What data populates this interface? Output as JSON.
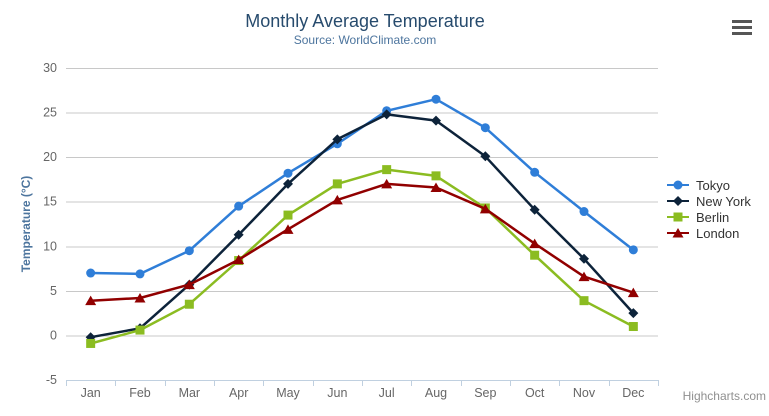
{
  "chart": {
    "credits_label": "Highcharts.com",
    "export_menu_icon": "hamburger-menu-icon"
  },
  "colors": {
    "background": "#ffffff",
    "title": "#274b6d",
    "subtitle": "#4d759e",
    "axis_title": "#4d759e",
    "axis_labels": "#666666",
    "gridline": "#c8c8c8",
    "axis_line": "#c0d0e0",
    "tick": "#c0d0e0",
    "legend_text": "#333333",
    "credits": "#909090",
    "export_icon": "#565656"
  },
  "chart_data": {
    "type": "line",
    "title": "Monthly Average Temperature",
    "subtitle": "Source: WorldClimate.com",
    "categories": [
      "Jan",
      "Feb",
      "Mar",
      "Apr",
      "May",
      "Jun",
      "Jul",
      "Aug",
      "Sep",
      "Oct",
      "Nov",
      "Dec"
    ],
    "xlabel": "",
    "ylabel": "Temperature (°C)",
    "ylim": [
      -5,
      30
    ],
    "ytick_step": 5,
    "grid": true,
    "legend_position": "right",
    "series": [
      {
        "name": "Tokyo",
        "color": "#2f7ed8",
        "marker": "circle",
        "values": [
          7.0,
          6.9,
          9.5,
          14.5,
          18.2,
          21.5,
          25.2,
          26.5,
          23.3,
          18.3,
          13.9,
          9.6
        ]
      },
      {
        "name": "New York",
        "color": "#0d233a",
        "marker": "diamond",
        "values": [
          -0.2,
          0.8,
          5.7,
          11.3,
          17.0,
          22.0,
          24.8,
          24.1,
          20.1,
          14.1,
          8.6,
          2.5
        ]
      },
      {
        "name": "Berlin",
        "color": "#8bbc21",
        "marker": "square",
        "values": [
          -0.9,
          0.6,
          3.5,
          8.4,
          13.5,
          17.0,
          18.6,
          17.9,
          14.3,
          9.0,
          3.9,
          1.0
        ]
      },
      {
        "name": "London",
        "color": "#910000",
        "marker": "triangle",
        "values": [
          3.9,
          4.2,
          5.7,
          8.5,
          11.9,
          15.2,
          17.0,
          16.6,
          14.2,
          10.3,
          6.6,
          4.8
        ]
      }
    ]
  }
}
